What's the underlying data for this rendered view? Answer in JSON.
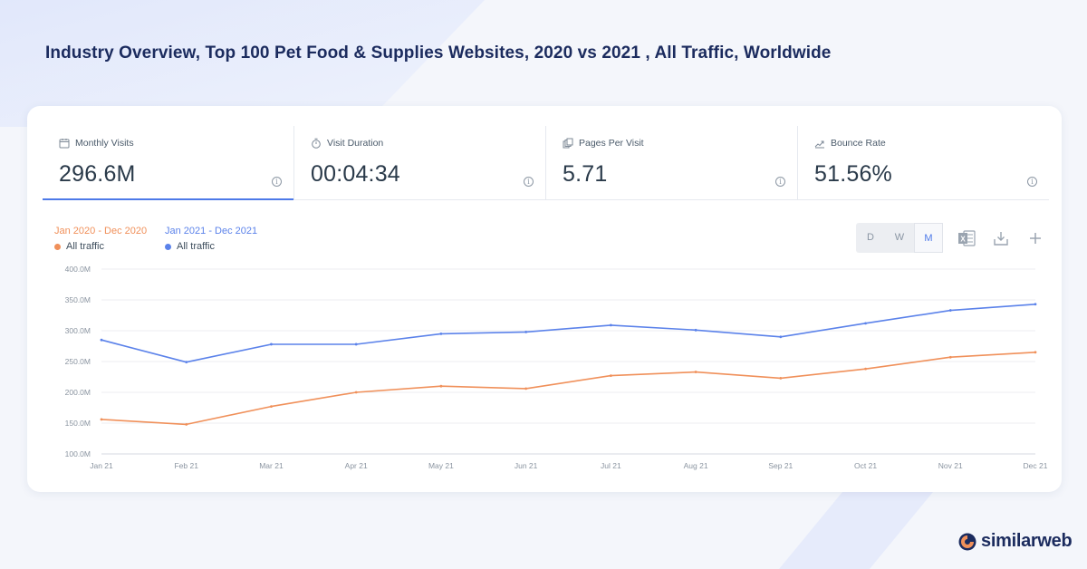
{
  "page_title": "Industry Overview, Top 100 Pet Food & Supplies Websites, 2020 vs 2021 , All Traffic, Worldwide",
  "metrics": [
    {
      "label": "Monthly Visits",
      "value": "296.6M",
      "icon": "calendar-icon",
      "active": true
    },
    {
      "label": "Visit Duration",
      "value": "00:04:34",
      "icon": "stopwatch-icon",
      "active": false
    },
    {
      "label": "Pages Per Visit",
      "value": "5.71",
      "icon": "pages-icon",
      "active": false
    },
    {
      "label": "Bounce Rate",
      "value": "51.56%",
      "icon": "trend-icon",
      "active": false
    }
  ],
  "legend": {
    "groups": [
      {
        "period": "Jan 2020 - Dec 2020",
        "item": "All traffic",
        "color": "#f0905a"
      },
      {
        "period": "Jan 2021 - Dec 2021",
        "item": "All traffic",
        "color": "#5b82ea"
      }
    ]
  },
  "toolbar": {
    "granularity": [
      {
        "label": "D",
        "active": false
      },
      {
        "label": "W",
        "active": false
      },
      {
        "label": "M",
        "active": true
      }
    ],
    "icons": [
      "excel-icon",
      "download-icon",
      "plus-icon"
    ]
  },
  "chart_data": {
    "type": "line",
    "title": "",
    "xlabel": "",
    "ylabel": "",
    "categories": [
      "Jan 21",
      "Feb 21",
      "Mar 21",
      "Apr 21",
      "May 21",
      "Jun 21",
      "Jul 21",
      "Aug 21",
      "Sep 21",
      "Oct 21",
      "Nov 21",
      "Dec 21"
    ],
    "y_ticks": [
      "400.0M",
      "350.0M",
      "300.0M",
      "250.0M",
      "200.0M",
      "150.0M",
      "100.0M"
    ],
    "ylim": [
      100,
      400
    ],
    "y_unit": "M",
    "grid": true,
    "series": [
      {
        "name": "Jan 2021 - Dec 2021",
        "color": "#5b82ea",
        "values": [
          285,
          249,
          278,
          278,
          295,
          298,
          309,
          301,
          290,
          312,
          333,
          343
        ]
      },
      {
        "name": "Jan 2020 - Dec 2020",
        "color": "#f0905a",
        "values": [
          156,
          148,
          177,
          200,
          210,
          206,
          227,
          233,
          223,
          238,
          257,
          265
        ]
      }
    ]
  },
  "brand": {
    "name": "similarweb",
    "colors": {
      "accent": "#4d79e8",
      "orange": "#f0905a",
      "navy": "#1b2b5e"
    }
  }
}
